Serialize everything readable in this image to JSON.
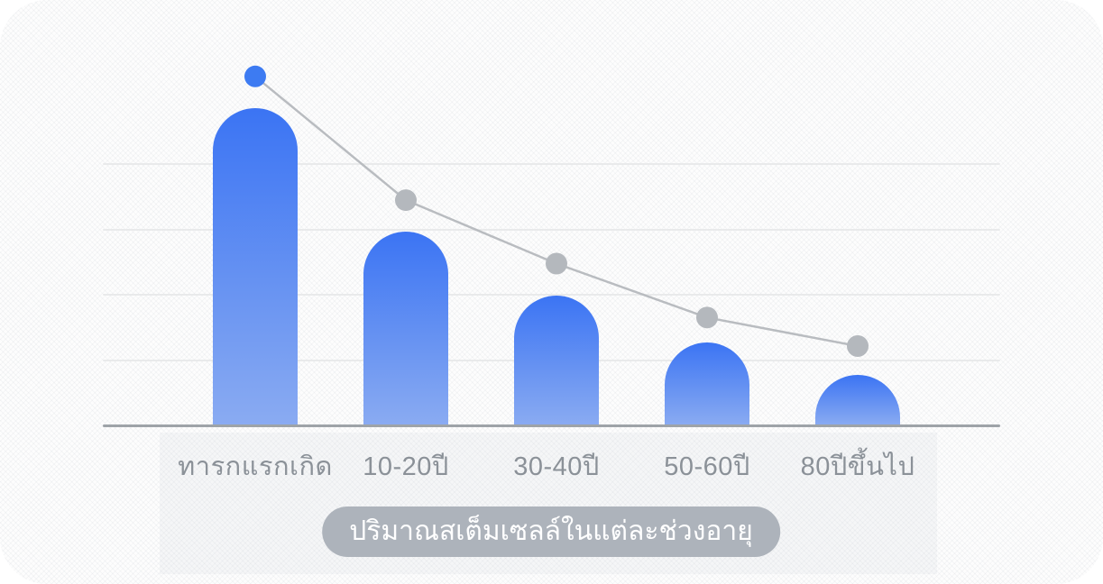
{
  "chart_data": {
    "type": "bar",
    "title": "ปริมาณสเต็มเซลล์ในแต่ละช่วงอายุ",
    "categories": [
      "ทารกแรกเกิด",
      "10-20ปี",
      "30-40ปี",
      "50-60ปี",
      "80ปีขึ้นไป"
    ],
    "series": [
      {
        "name": "stem-cell-amount-bars",
        "type": "bar",
        "values": [
          100,
          61,
          41,
          26,
          16
        ]
      },
      {
        "name": "trend-line-markers",
        "type": "line",
        "values": [
          110,
          71,
          51,
          34,
          25
        ]
      }
    ],
    "ylim": [
      0,
      125
    ],
    "xlabel": "",
    "ylabel": "",
    "grid": "horizontal",
    "gridline_count": 4,
    "legend": "none",
    "colors": {
      "bar_gradient_top": "#3b74f3",
      "bar_gradient_bottom": "#8aabf2",
      "line": "#b9bcc0",
      "marker_first": "#3d7bf2",
      "marker_rest": "#b4b8bd",
      "axis": "#9ea3a8",
      "gridline": "#e9eaeb",
      "label_text": "#8b9198",
      "caption_bg": "#adb3bb",
      "caption_text": "#ffffff"
    }
  }
}
